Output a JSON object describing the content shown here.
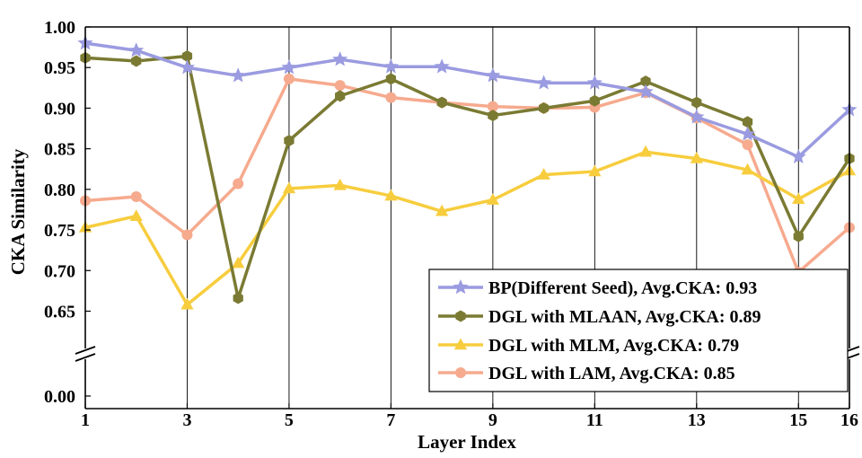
{
  "chart_data": {
    "type": "line",
    "title": "",
    "xlabel": "Layer Index",
    "ylabel": "CKA Similarity",
    "x": [
      1,
      2,
      3,
      4,
      5,
      6,
      7,
      8,
      9,
      10,
      11,
      12,
      13,
      14,
      15,
      16
    ],
    "xticks": [
      1,
      3,
      5,
      7,
      9,
      11,
      13,
      15,
      16
    ],
    "yticks": [
      "0.00",
      "0.65",
      "0.70",
      "0.75",
      "0.80",
      "0.85",
      "0.90",
      "0.95",
      "1.00"
    ],
    "ylim_upper": [
      0.625,
      1.0
    ],
    "axis_break": "between 0.00 and 0.65",
    "grid": "vertical gridlines at odd layer indices",
    "legend_position": "bottom-right",
    "series": [
      {
        "name": "BP(Different Seed), Avg.CKA: 0.93",
        "marker": "star",
        "color": "#9a9be0",
        "values": [
          0.98,
          0.971,
          0.95,
          0.94,
          0.95,
          0.96,
          0.951,
          0.951,
          0.94,
          0.931,
          0.931,
          0.92,
          0.889,
          0.868,
          0.84,
          0.898
        ]
      },
      {
        "name": "DGL with MLAAN, Avg.CKA: 0.89",
        "marker": "hexagon",
        "color": "#7a7a33",
        "values": [
          0.962,
          0.958,
          0.964,
          0.666,
          0.86,
          0.915,
          0.936,
          0.907,
          0.891,
          0.9,
          0.909,
          0.933,
          0.907,
          0.883,
          0.742,
          0.838
        ]
      },
      {
        "name": "DGL with MLM, Avg.CKA: 0.79",
        "marker": "triangle",
        "color": "#f7cd3e",
        "values": [
          0.753,
          0.767,
          0.658,
          0.709,
          0.801,
          0.805,
          0.792,
          0.773,
          0.787,
          0.818,
          0.822,
          0.846,
          0.838,
          0.824,
          0.788,
          0.823
        ]
      },
      {
        "name": "DGL with LAM, Avg.CKA: 0.85",
        "marker": "circle",
        "color": "#f6aa8e",
        "values": [
          0.786,
          0.791,
          0.744,
          0.807,
          0.936,
          0.928,
          0.913,
          0.907,
          0.902,
          0.9,
          0.901,
          0.919,
          0.888,
          0.855,
          0.698,
          0.753
        ]
      }
    ]
  }
}
